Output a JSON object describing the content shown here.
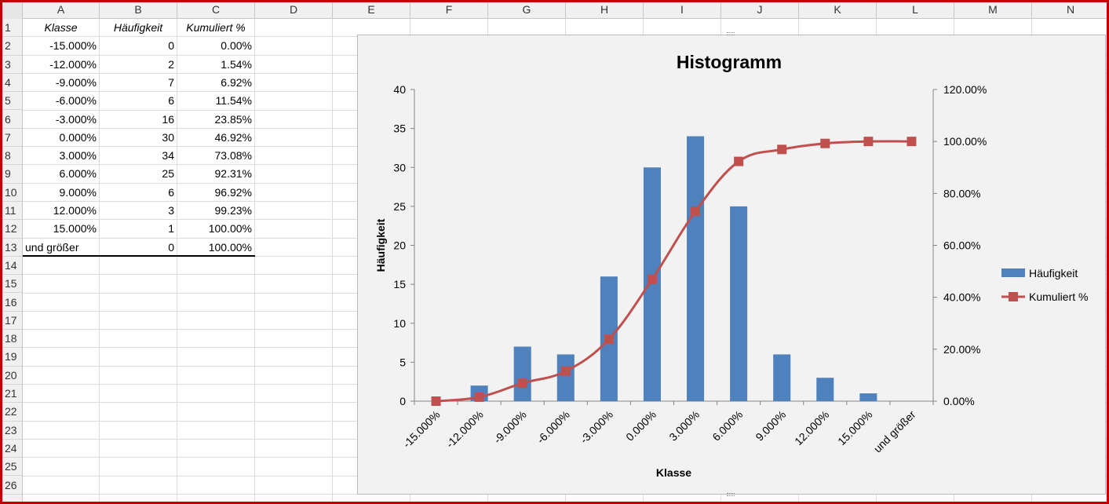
{
  "columns": [
    "A",
    "B",
    "C",
    "D",
    "E",
    "F",
    "G",
    "H",
    "I",
    "J",
    "K",
    "L",
    "M",
    "N"
  ],
  "rows": [
    "1",
    "2",
    "3",
    "4",
    "5",
    "6",
    "7",
    "8",
    "9",
    "10",
    "11",
    "12",
    "13",
    "14",
    "15",
    "16",
    "17",
    "18",
    "19",
    "20",
    "21",
    "22",
    "23",
    "24",
    "25",
    "26"
  ],
  "table": {
    "headers": [
      "Klasse",
      "Häufigkeit",
      "Kumuliert %"
    ],
    "rows": [
      [
        "-15.000%",
        "0",
        "0.00%"
      ],
      [
        "-12.000%",
        "2",
        "1.54%"
      ],
      [
        "-9.000%",
        "7",
        "6.92%"
      ],
      [
        "-6.000%",
        "6",
        "11.54%"
      ],
      [
        "-3.000%",
        "16",
        "23.85%"
      ],
      [
        "0.000%",
        "30",
        "46.92%"
      ],
      [
        "3.000%",
        "34",
        "73.08%"
      ],
      [
        "6.000%",
        "25",
        "92.31%"
      ],
      [
        "9.000%",
        "6",
        "96.92%"
      ],
      [
        "12.000%",
        "3",
        "99.23%"
      ],
      [
        "15.000%",
        "1",
        "100.00%"
      ],
      [
        "und größer",
        "0",
        "100.00%"
      ]
    ]
  },
  "chart_data": {
    "type": "bar",
    "title": "Histogramm",
    "xlabel": "Klasse",
    "ylabel": "Häufigkeit",
    "categories": [
      "-15.000%",
      "-12.000%",
      "-9.000%",
      "-6.000%",
      "-3.000%",
      "0.000%",
      "3.000%",
      "6.000%",
      "9.000%",
      "12.000%",
      "15.000%",
      "und größer"
    ],
    "series": [
      {
        "name": "Häufigkeit",
        "kind": "bar",
        "axis": "left",
        "color": "#4f81bd",
        "values": [
          0,
          2,
          7,
          6,
          16,
          30,
          34,
          25,
          6,
          3,
          1,
          0
        ]
      },
      {
        "name": "Kumuliert %",
        "kind": "line",
        "axis": "right",
        "color": "#c0504d",
        "values": [
          0,
          1.54,
          6.92,
          11.54,
          23.85,
          46.92,
          73.08,
          92.31,
          96.92,
          99.23,
          100,
          100
        ]
      }
    ],
    "ylim": [
      0,
      40
    ],
    "yticks": [
      "0",
      "5",
      "10",
      "15",
      "20",
      "25",
      "30",
      "35",
      "40"
    ],
    "y2lim": [
      0,
      120
    ],
    "y2ticks": [
      "0.00%",
      "20.00%",
      "40.00%",
      "60.00%",
      "80.00%",
      "100.00%",
      "120.00%"
    ],
    "legend": "right",
    "grid": false
  }
}
